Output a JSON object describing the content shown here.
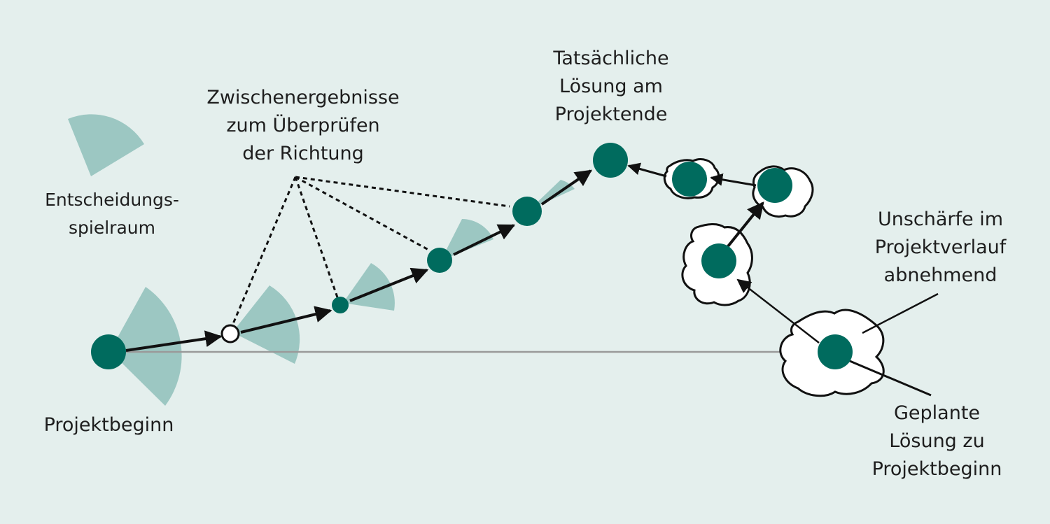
{
  "colors": {
    "background": "#e4efed",
    "node": "#006b5e",
    "fan": "#9cc7c2",
    "arrow": "#111111",
    "planned_arrow": "#9a9a9a",
    "blob_fill": "#ffffff"
  },
  "labels": {
    "decision_space": "Entscheidungs-\nspielraum",
    "intermediate_results": "Zwischenergebnisse\nzum Überprüfen\nder Richtung",
    "actual_solution": "Tatsächliche\nLösung am\nProjektende",
    "uncertainty": "Unschärfe im\nProjektverlauf\nabnehmend",
    "planned_solution": "Geplante\nLösung zu\nProjektbeginn",
    "project_start": "Projektbeginn"
  },
  "icons": {
    "node": "filled-circle",
    "checkpoint": "hollow-circle",
    "fan": "circular-sector",
    "uncertainty": "cloud-blob"
  }
}
